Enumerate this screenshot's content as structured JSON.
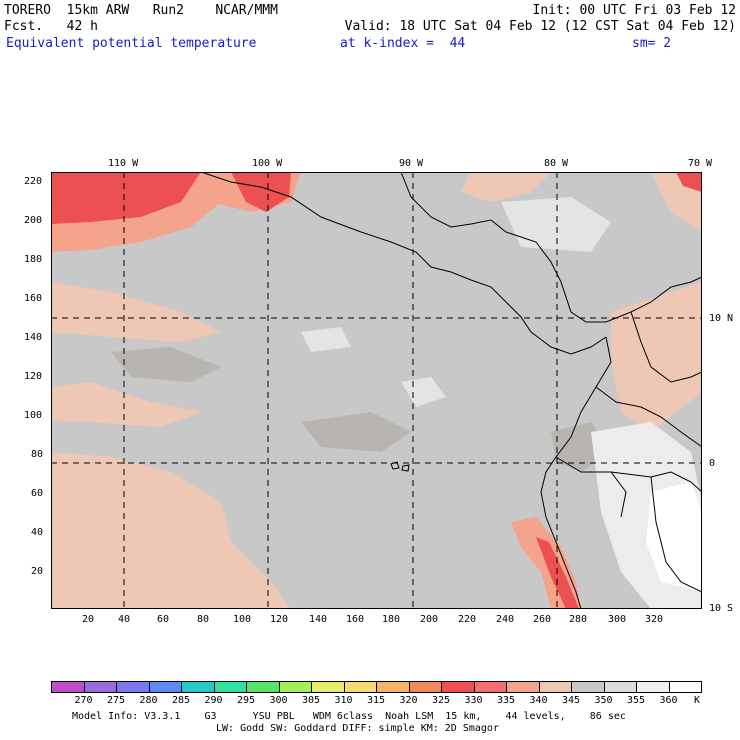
{
  "header": {
    "left_line1": "TORERO  15km ARW   Run2    NCAR/MMM",
    "left_line2": "Fcst.   42 h",
    "right_line1": "Init: 00 UTC Fri 03 Feb 12",
    "right_line2": "Valid: 18 UTC Sat 04 Feb 12 (12 CST Sat 04 Feb 12)",
    "field_name": "Equivalent potential temperature",
    "level": "at k-index =  44",
    "smoothing": "sm= 2"
  },
  "map": {
    "lon_labels": [
      "110 W",
      "100 W",
      "90 W",
      "80 W",
      "70 W"
    ],
    "lat_labels": [
      "10 N",
      "0",
      "10 S"
    ],
    "y_ticks": [
      "220",
      "200",
      "180",
      "160",
      "140",
      "120",
      "100",
      "80",
      "60",
      "40",
      "20"
    ],
    "x_ticks": [
      "20",
      "40",
      "60",
      "80",
      "100",
      "120",
      "140",
      "160",
      "180",
      "200",
      "220",
      "240",
      "260",
      "280",
      "300",
      "320"
    ]
  },
  "colorbar": {
    "labels": [
      "270",
      "275",
      "280",
      "285",
      "290",
      "295",
      "300",
      "305",
      "310",
      "315",
      "320",
      "325",
      "330",
      "335",
      "340",
      "345",
      "350",
      "355",
      "360"
    ],
    "unit": "K",
    "colors": [
      "#c04cc8",
      "#9a6cdc",
      "#7a78ee",
      "#5a8cf4",
      "#2ac8c8",
      "#30e2a2",
      "#58e26a",
      "#a6ee58",
      "#e4ee6a",
      "#f6dc70",
      "#f6b464",
      "#f08a5a",
      "#ec5050",
      "#f47070",
      "#f4a48a",
      "#eec8b4",
      "#c8c8c8",
      "#dcdcdc",
      "#f0f0f0",
      "#ffffff"
    ]
  },
  "footer": {
    "line1": "Model Info: V3.3.1    G3      YSU PBL   WDM 6class  Noah LSM  15 km,    44 levels,    86 sec",
    "line2": "LW: Godd SW: Goddard DIFF: simple KM: 2D Smagor"
  }
}
